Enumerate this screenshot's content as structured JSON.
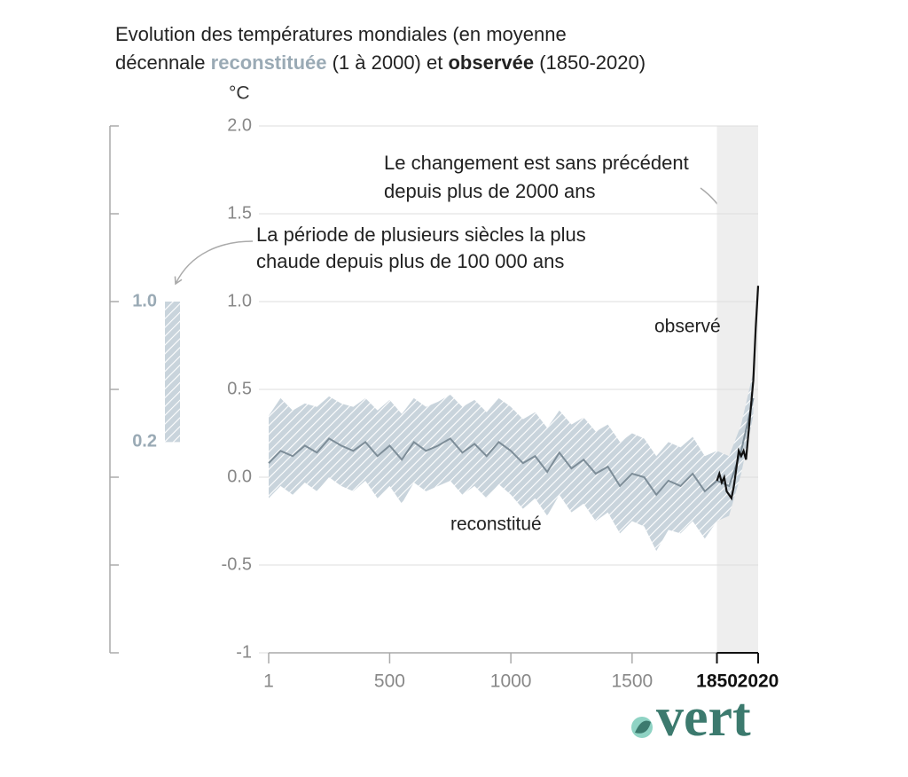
{
  "chart_data": {
    "type": "line",
    "title": [
      [
        {
          "text": "Evolution des températures mondiales (en moyenne"
        }
      ],
      [
        {
          "text": "décennale "
        },
        {
          "text": "reconstituée",
          "bold": true,
          "color": "#9aaab5"
        },
        {
          "text": " (1 à 2000) et "
        },
        {
          "text": "observée",
          "bold": true
        },
        {
          "text": " (1850-2020)"
        }
      ]
    ],
    "y_unit": "°C",
    "ylim": [
      -1,
      2.0
    ],
    "yticks": [
      -1,
      -0.5,
      {
        "value": 0,
        "label": "0.0"
      },
      0.5,
      {
        "value": 1,
        "label": "1.0"
      },
      1.5,
      {
        "value": 2,
        "label": "2.0"
      }
    ],
    "xlim": [
      1,
      2020
    ],
    "xticks": [
      1,
      500,
      1000,
      1500,
      1850,
      2020
    ],
    "grid": true,
    "shaded_region": [
      1850,
      2020
    ],
    "series": [
      {
        "name": "reconstitué",
        "color": "#7d8d98",
        "x": [
          1,
          50,
          100,
          150,
          200,
          250,
          300,
          350,
          400,
          450,
          500,
          550,
          600,
          650,
          700,
          750,
          800,
          850,
          900,
          950,
          1000,
          1050,
          1100,
          1150,
          1200,
          1250,
          1300,
          1350,
          1400,
          1450,
          1500,
          1550,
          1600,
          1650,
          1700,
          1750,
          1800,
          1850,
          1900,
          1950,
          2000
        ],
        "values": [
          0.08,
          0.15,
          0.12,
          0.18,
          0.14,
          0.22,
          0.18,
          0.15,
          0.2,
          0.12,
          0.18,
          0.1,
          0.2,
          0.15,
          0.18,
          0.22,
          0.14,
          0.19,
          0.12,
          0.2,
          0.15,
          0.08,
          0.12,
          0.03,
          0.14,
          0.05,
          0.1,
          0.02,
          0.06,
          -0.05,
          0.02,
          0,
          -0.1,
          -0.02,
          -0.05,
          0.02,
          -0.08,
          -0.02,
          -0.05,
          0.15,
          0.45
        ],
        "band": {
          "color": "#a9bac6",
          "upper": [
            0.35,
            0.45,
            0.38,
            0.42,
            0.4,
            0.46,
            0.42,
            0.4,
            0.45,
            0.38,
            0.44,
            0.36,
            0.45,
            0.4,
            0.43,
            0.47,
            0.4,
            0.44,
            0.37,
            0.45,
            0.4,
            0.33,
            0.37,
            0.28,
            0.38,
            0.3,
            0.34,
            0.26,
            0.3,
            0.2,
            0.25,
            0.22,
            0.12,
            0.2,
            0.17,
            0.23,
            0.12,
            0.15,
            0.12,
            0.3,
            0.6
          ],
          "lower": [
            -0.12,
            -0.05,
            -0.1,
            -0.03,
            -0.08,
            0,
            -0.05,
            -0.08,
            -0.02,
            -0.12,
            -0.05,
            -0.15,
            -0.03,
            -0.08,
            -0.05,
            -0.02,
            -0.1,
            -0.05,
            -0.12,
            -0.04,
            -0.1,
            -0.18,
            -0.12,
            -0.22,
            -0.1,
            -0.2,
            -0.15,
            -0.25,
            -0.2,
            -0.32,
            -0.25,
            -0.28,
            -0.42,
            -0.3,
            -0.32,
            -0.25,
            -0.35,
            -0.25,
            -0.22,
            0.02,
            0.35
          ]
        }
      },
      {
        "name": "observé",
        "color": "#111111",
        "x": [
          1850,
          1860,
          1870,
          1880,
          1890,
          1900,
          1910,
          1920,
          1930,
          1940,
          1950,
          1960,
          1970,
          1980,
          1990,
          2000,
          2010,
          2020
        ],
        "values": [
          -0.02,
          0.02,
          -0.03,
          0,
          -0.08,
          -0.1,
          -0.12,
          -0.05,
          0.05,
          0.15,
          0.12,
          0.15,
          0.1,
          0.25,
          0.4,
          0.55,
          0.85,
          1.09
        ]
      }
    ],
    "inset": {
      "range": [
        0.2,
        {
          "value": 1,
          "label": "1.0"
        }
      ],
      "color": "#9aaab5"
    },
    "annotations": [
      {
        "lines": [
          "Le changement est sans précédent",
          "depuis plus de 2000 ans"
        ]
      },
      {
        "lines": [
          "La période de plusieurs siècles la plus",
          "chaude depuis plus de 100 000 ans"
        ]
      }
    ],
    "logo": "vert"
  }
}
